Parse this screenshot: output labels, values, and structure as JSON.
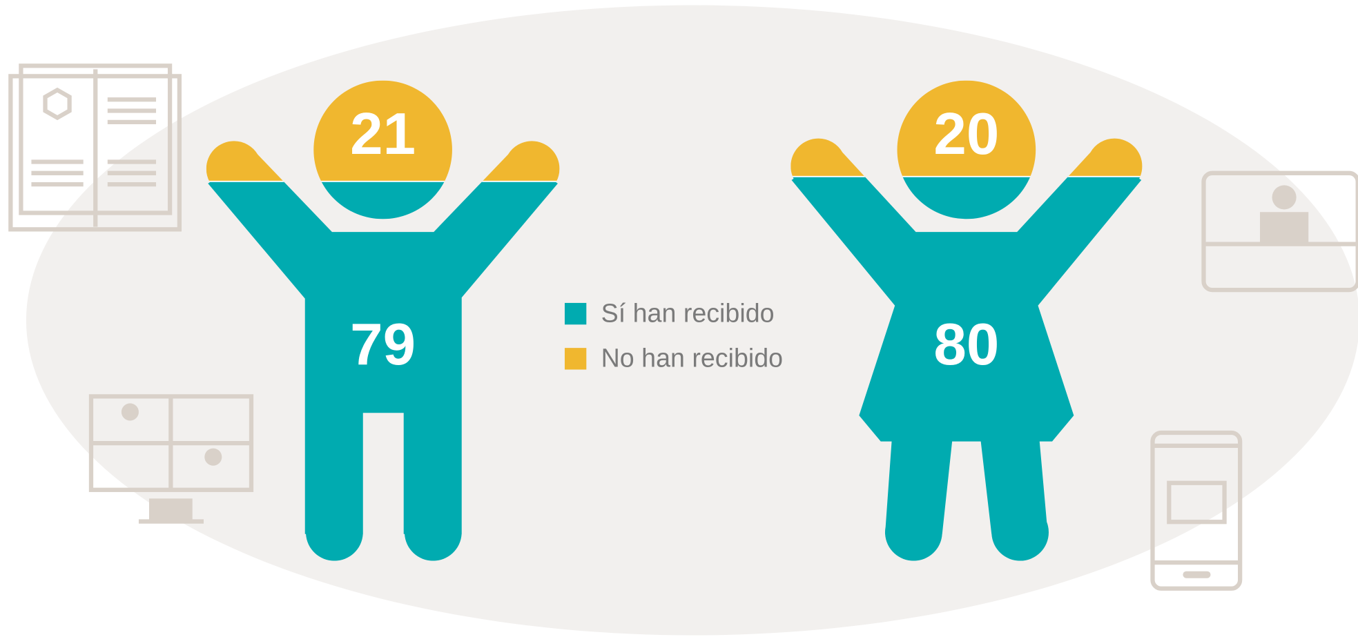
{
  "chart_data": {
    "type": "pictogram",
    "categories": [
      null,
      null
    ],
    "ylim": [
      0,
      100
    ],
    "series": [
      {
        "name": "Sí han recibido",
        "color": "#00abb0",
        "values": [
          79,
          80
        ]
      },
      {
        "name": "No han recibido",
        "color": "#f0b72f",
        "values": [
          21,
          20
        ]
      }
    ]
  }
}
